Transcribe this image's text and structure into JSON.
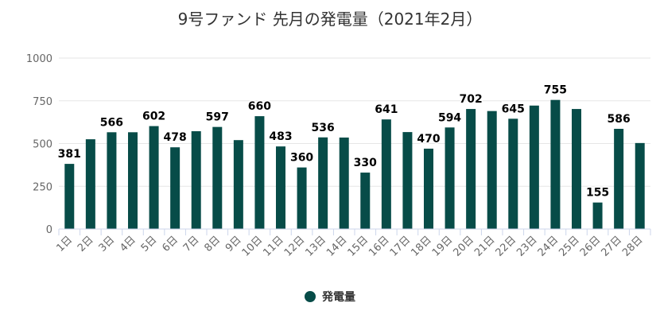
{
  "chart_data": {
    "type": "bar",
    "title": "9号ファンド 先月の発電量（2021年2月）",
    "categories": [
      "1日",
      "2日",
      "3日",
      "4日",
      "5日",
      "6日",
      "7日",
      "8日",
      "9日",
      "10日",
      "11日",
      "12日",
      "13日",
      "14日",
      "15日",
      "16日",
      "17日",
      "18日",
      "19日",
      "20日",
      "21日",
      "22日",
      "23日",
      "24日",
      "25日",
      "26日",
      "27日",
      "28日"
    ],
    "series": [
      {
        "name": "発電量",
        "values": [
          381,
          525,
          566,
          566,
          602,
          478,
          572,
          597,
          520,
          660,
          483,
          360,
          536,
          535,
          330,
          641,
          567,
          470,
          594,
          702,
          690,
          645,
          722,
          755,
          702,
          155,
          586,
          503
        ],
        "labels": [
          "381",
          "",
          "566",
          "",
          "602",
          "478",
          "",
          "597",
          "",
          "660",
          "483",
          "360",
          "536",
          "",
          "330",
          "641",
          "",
          "470",
          "594",
          "702",
          "",
          "645",
          "",
          "755",
          "",
          "155",
          "586",
          ""
        ]
      }
    ],
    "ylim": [
      0,
      1000
    ],
    "yticks": [
      0,
      250,
      500,
      750,
      1000
    ],
    "grid": true,
    "legend_position": "bottom",
    "colors": {
      "bar": "#074c48",
      "grid": "#e6e6e6",
      "axis": "#ccd6eb",
      "text": "#666666"
    }
  }
}
